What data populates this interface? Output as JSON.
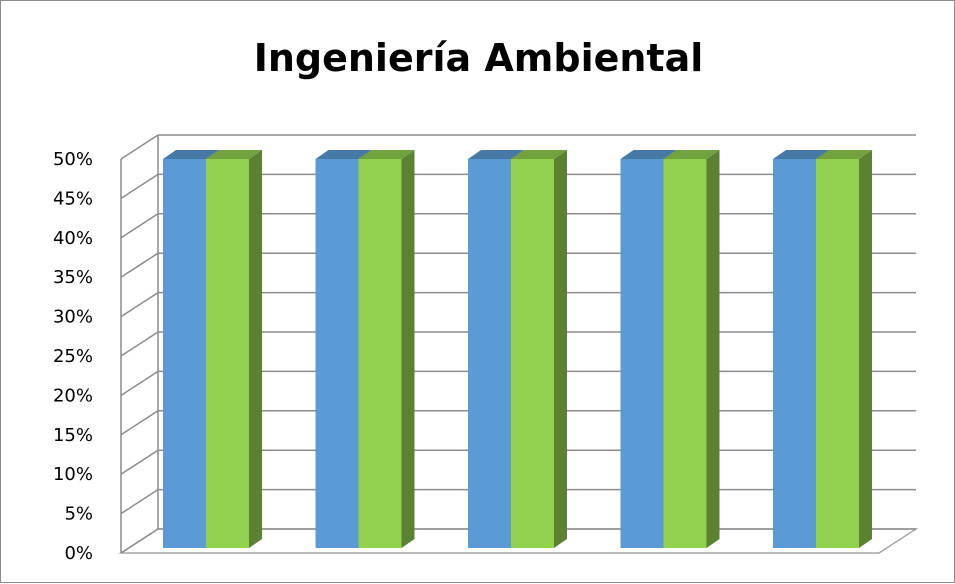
{
  "chart_data": {
    "type": "bar",
    "title": "Ingeniería Ambiental",
    "xlabel": "",
    "ylabel": "",
    "categories": [
      "",
      "",
      "",
      "",
      ""
    ],
    "series": [
      {
        "color": "#5b9bd5",
        "values": [
          0.5,
          0.5,
          0.5,
          0.5,
          0.5
        ]
      },
      {
        "color": "#92d050",
        "values": [
          0.5,
          0.5,
          0.5,
          0.5,
          0.5
        ]
      }
    ],
    "ylim": [
      0,
      0.5
    ],
    "yticks": [
      "0%",
      "5%",
      "10%",
      "15%",
      "20%",
      "25%",
      "30%",
      "35%",
      "40%",
      "45%",
      "50%"
    ],
    "grid": true,
    "legend": "none",
    "style": "3d-clustered-column"
  }
}
